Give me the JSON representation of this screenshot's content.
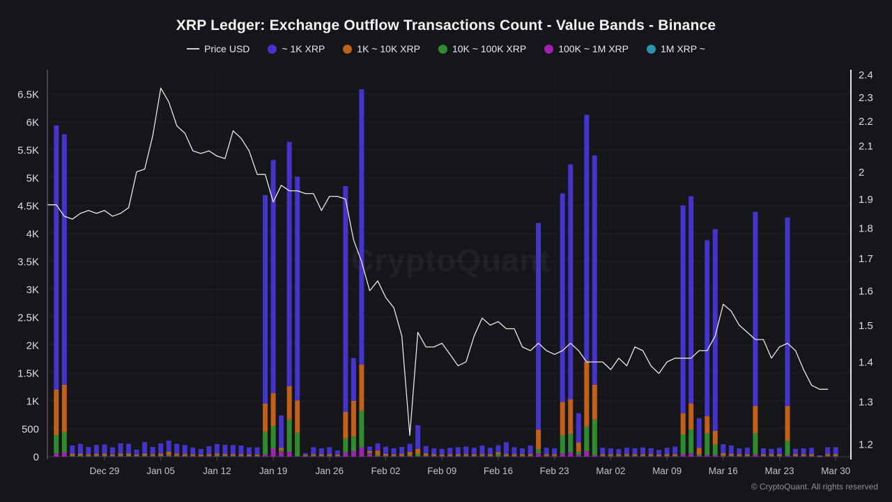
{
  "header": {
    "title": "XRP Ledger: Exchange Outflow Transactions Count - Value Bands - Binance"
  },
  "watermark": "CryptoQuant",
  "footer": {
    "copyright": "© CryptoQuant. All rights reserved"
  },
  "legend": [
    {
      "label": "Price USD",
      "color": "#cfcfd4",
      "swatch": "line"
    },
    {
      "label": "~ 1K XRP",
      "color": "#4434cb",
      "swatch": "dot"
    },
    {
      "label": "1K ~ 10K XRP",
      "color": "#c06019",
      "swatch": "dot"
    },
    {
      "label": "10K ~ 100K XRP",
      "color": "#2e8b2e",
      "swatch": "dot"
    },
    {
      "label": "100K ~ 1M XRP",
      "color": "#9c23ae",
      "swatch": "dot"
    },
    {
      "label": "1M XRP ~",
      "color": "#2d93ab",
      "swatch": "dot"
    }
  ],
  "chart_data": {
    "type": "bar",
    "subtype": "stacked_daily_bars_with_price_line_overlay",
    "title": "XRP Ledger: Exchange Outflow Transactions Count - Value Bands - Binance",
    "legend_position": "top",
    "grid": "faint horizontal and vertical weekly gridlines",
    "stack_order": "bottom_to_top",
    "note": "1M XRP ~ band appears in legend but has no visible bar segments",
    "dates": [
      "Dec 23",
      "Dec 24",
      "Dec 25",
      "Dec 26",
      "Dec 27",
      "Dec 28",
      "Dec 29",
      "Dec 30",
      "Dec 31",
      "Jan 01",
      "Jan 02",
      "Jan 03",
      "Jan 04",
      "Jan 05",
      "Jan 06",
      "Jan 07",
      "Jan 08",
      "Jan 09",
      "Jan 10",
      "Jan 11",
      "Jan 12",
      "Jan 13",
      "Jan 14",
      "Jan 15",
      "Jan 16",
      "Jan 17",
      "Jan 18",
      "Jan 19",
      "Jan 20",
      "Jan 21",
      "Jan 22",
      "Jan 23",
      "Jan 24",
      "Jan 25",
      "Jan 26",
      "Jan 27",
      "Jan 28",
      "Jan 29",
      "Jan 30",
      "Jan 31",
      "Feb 01",
      "Feb 02",
      "Feb 03",
      "Feb 04",
      "Feb 05",
      "Feb 06",
      "Feb 07",
      "Feb 08",
      "Feb 09",
      "Feb 10",
      "Feb 11",
      "Feb 12",
      "Feb 13",
      "Feb 14",
      "Feb 15",
      "Feb 16",
      "Feb 17",
      "Feb 18",
      "Feb 19",
      "Feb 20",
      "Feb 21",
      "Feb 22",
      "Feb 23",
      "Feb 24",
      "Feb 25",
      "Feb 26",
      "Feb 27",
      "Feb 28",
      "Mar 01",
      "Mar 02",
      "Mar 03",
      "Mar 04",
      "Mar 05",
      "Mar 06",
      "Mar 07",
      "Mar 08",
      "Mar 09",
      "Mar 10",
      "Mar 11",
      "Mar 12",
      "Mar 13",
      "Mar 14",
      "Mar 15",
      "Mar 16",
      "Mar 17",
      "Mar 18",
      "Mar 19",
      "Mar 20",
      "Mar 21",
      "Mar 22",
      "Mar 23",
      "Mar 24",
      "Mar 25",
      "Mar 26",
      "Mar 27",
      "Mar 28",
      "Mar 29",
      "Mar 30"
    ],
    "series": [
      {
        "name": "100K ~ 1M XRP",
        "color": "#9c23ae",
        "values": [
          60,
          80,
          10,
          10,
          8,
          10,
          10,
          8,
          10,
          10,
          8,
          10,
          8,
          10,
          10,
          10,
          8,
          8,
          8,
          8,
          10,
          8,
          8,
          8,
          8,
          8,
          40,
          150,
          90,
          85,
          10,
          8,
          8,
          8,
          8,
          8,
          80,
          100,
          170,
          60,
          10,
          8,
          8,
          8,
          10,
          10,
          8,
          8,
          8,
          8,
          8,
          8,
          8,
          8,
          8,
          10,
          8,
          8,
          8,
          8,
          60,
          8,
          8,
          60,
          80,
          35,
          100,
          30,
          8,
          8,
          8,
          8,
          8,
          8,
          8,
          8,
          8,
          8,
          50,
          60,
          20,
          30,
          30,
          8,
          8,
          8,
          8,
          40,
          8,
          8,
          8,
          20,
          8,
          8,
          8,
          2,
          8,
          8
        ]
      },
      {
        "name": "10K ~ 100K XRP",
        "color": "#2e8b2e",
        "values": [
          330,
          360,
          15,
          15,
          12,
          15,
          15,
          12,
          15,
          15,
          10,
          15,
          12,
          15,
          20,
          15,
          12,
          12,
          10,
          12,
          15,
          12,
          12,
          12,
          10,
          10,
          400,
          400,
          30,
          580,
          420,
          10,
          12,
          12,
          12,
          10,
          240,
          260,
          650,
          15,
          20,
          12,
          12,
          12,
          15,
          40,
          12,
          12,
          10,
          12,
          12,
          12,
          12,
          12,
          12,
          40,
          12,
          12,
          12,
          12,
          75,
          12,
          12,
          320,
          330,
          50,
          440,
          635,
          12,
          12,
          12,
          12,
          12,
          12,
          12,
          10,
          12,
          12,
          350,
          425,
          20,
          390,
          190,
          15,
          12,
          12,
          12,
          380,
          12,
          12,
          12,
          265,
          12,
          12,
          12,
          3,
          12,
          12
        ]
      },
      {
        "name": "1K ~ 10K XRP",
        "color": "#c06019",
        "values": [
          810,
          850,
          25,
          30,
          25,
          25,
          30,
          22,
          30,
          30,
          20,
          30,
          25,
          30,
          60,
          30,
          28,
          25,
          20,
          28,
          30,
          28,
          28,
          25,
          22,
          22,
          510,
          590,
          40,
          600,
          580,
          15,
          25,
          25,
          25,
          20,
          480,
          640,
          830,
          25,
          80,
          30,
          25,
          30,
          60,
          90,
          40,
          25,
          22,
          25,
          25,
          25,
          25,
          28,
          25,
          30,
          25,
          25,
          25,
          28,
          350,
          25,
          25,
          600,
          620,
          170,
          1160,
          625,
          25,
          25,
          25,
          25,
          25,
          25,
          25,
          20,
          25,
          25,
          380,
          470,
          120,
          310,
          245,
          40,
          30,
          25,
          25,
          490,
          25,
          25,
          25,
          625,
          25,
          25,
          25,
          5,
          25,
          25
        ]
      },
      {
        "name": "~ 1K XRP",
        "color": "#4434cb",
        "values": [
          4740,
          4490,
          150,
          175,
          130,
          160,
          165,
          125,
          185,
          175,
          90,
          205,
          130,
          185,
          200,
          175,
          160,
          120,
          100,
          140,
          170,
          165,
          160,
          155,
          127,
          127,
          3740,
          4180,
          580,
          4380,
          4010,
          30,
          125,
          105,
          125,
          75,
          4050,
          770,
          4940,
          80,
          130,
          130,
          105,
          125,
          145,
          425,
          130,
          105,
          100,
          115,
          125,
          135,
          115,
          152,
          115,
          125,
          215,
          125,
          105,
          152,
          3705,
          115,
          105,
          3740,
          4210,
          525,
          4430,
          4110,
          115,
          105,
          95,
          115,
          105,
          120,
          105,
          82,
          115,
          135,
          3725,
          3715,
          530,
          3150,
          3615,
          160,
          150,
          105,
          115,
          3480,
          105,
          95,
          115,
          3380,
          95,
          105,
          115,
          15,
          125,
          125
        ]
      }
    ],
    "price_line": {
      "name": "Price USD",
      "color": "#e9e9ea",
      "axis": "right",
      "values": [
        1.88,
        1.84,
        1.83,
        1.85,
        1.86,
        1.85,
        1.86,
        1.84,
        1.85,
        1.87,
        2.0,
        2.01,
        2.14,
        2.34,
        2.28,
        2.18,
        2.15,
        2.08,
        2.07,
        2.08,
        2.06,
        2.05,
        2.16,
        2.13,
        2.08,
        1.99,
        1.99,
        1.89,
        1.95,
        1.93,
        1.93,
        1.92,
        1.92,
        1.86,
        1.91,
        1.91,
        1.9,
        1.76,
        1.69,
        1.6,
        1.63,
        1.58,
        1.55,
        1.47,
        1.22,
        1.48,
        1.44,
        1.44,
        1.45,
        1.42,
        1.39,
        1.4,
        1.47,
        1.52,
        1.5,
        1.51,
        1.49,
        1.49,
        1.44,
        1.43,
        1.45,
        1.43,
        1.42,
        1.43,
        1.45,
        1.43,
        1.4,
        1.4,
        1.4,
        1.38,
        1.41,
        1.39,
        1.44,
        1.43,
        1.39,
        1.37,
        1.4,
        1.41,
        1.41,
        1.41,
        1.43,
        1.43,
        1.47,
        1.56,
        1.54,
        1.5,
        1.48,
        1.46,
        1.46,
        1.41,
        1.44,
        1.45,
        1.43,
        1.38,
        1.34,
        1.33,
        1.33,
        null
      ]
    },
    "left_axis": {
      "scale": "linear",
      "range": [
        0,
        6940
      ],
      "tick_labels": [
        "0",
        "500",
        "1K",
        "1.5K",
        "2K",
        "2.5K",
        "3K",
        "3.5K",
        "4K",
        "4.5K",
        "5K",
        "5.5K",
        "6K",
        "6.5K"
      ],
      "tick_values": [
        0,
        500,
        1000,
        1500,
        2000,
        2500,
        3000,
        3500,
        4000,
        4500,
        5000,
        5500,
        6000,
        6500
      ]
    },
    "right_axis": {
      "scale": "log",
      "range": [
        1.19,
        2.42
      ],
      "tick_values": [
        2.4,
        2.3,
        2.2,
        2.1,
        2,
        1.9,
        1.8,
        1.7,
        1.6,
        1.5,
        1.4,
        1.3,
        1.2
      ]
    },
    "x_axis": {
      "tick_labels": [
        "Dec 29",
        "Jan 05",
        "Jan 12",
        "Jan 19",
        "Jan 26",
        "Feb 02",
        "Feb 09",
        "Feb 16",
        "Feb 23",
        "Mar 02",
        "Mar 09",
        "Mar 16",
        "Mar 23",
        "Mar 30"
      ],
      "tick_indices": [
        6,
        13,
        20,
        27,
        34,
        41,
        48,
        55,
        62,
        69,
        76,
        83,
        90,
        97
      ]
    }
  }
}
